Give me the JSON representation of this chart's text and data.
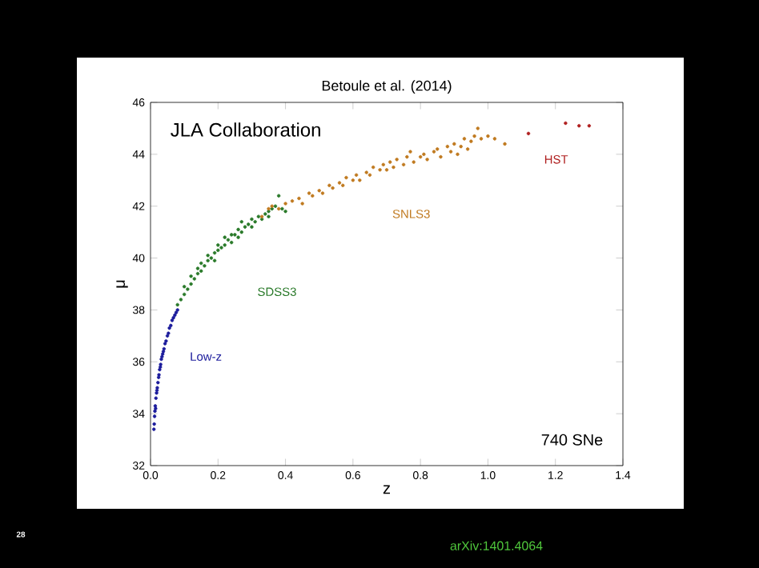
{
  "chart_data": {
    "type": "scatter",
    "title": "Betoule et al. (2014)",
    "xlabel": "z",
    "ylabel": "μ",
    "xlim": [
      0,
      1.4
    ],
    "ylim": [
      32,
      46
    ],
    "xticks": [
      {
        "value": 0,
        "label": "0.0"
      },
      {
        "value": 0.2,
        "label": "0.2"
      },
      {
        "value": 0.4,
        "label": "0.4"
      },
      {
        "value": 0.6,
        "label": "0.6"
      },
      {
        "value": 0.8,
        "label": "0.8"
      },
      {
        "value": 1.0,
        "label": "1.0"
      },
      {
        "value": 1.2,
        "label": "1.2"
      },
      {
        "value": 1.4,
        "label": "1.4"
      }
    ],
    "yticks": [
      32,
      34,
      36,
      38,
      40,
      42,
      44,
      46
    ],
    "grid": false,
    "legend": false,
    "marker": "circle",
    "annotations": [
      "JLA Collaboration",
      "740 SNe",
      "arXiv:1401.4064",
      "28"
    ],
    "series": [
      {
        "name": "Low-z",
        "color": "#1c1c9c",
        "x": [
          0.01,
          0.011,
          0.012,
          0.013,
          0.014,
          0.015,
          0.016,
          0.018,
          0.019,
          0.02,
          0.022,
          0.024,
          0.025,
          0.027,
          0.029,
          0.03,
          0.032,
          0.034,
          0.036,
          0.038,
          0.04,
          0.043,
          0.046,
          0.05,
          0.053,
          0.056,
          0.06,
          0.064,
          0.068,
          0.072,
          0.076,
          0.08
        ],
        "values": [
          33.4,
          33.6,
          33.9,
          34.1,
          34.3,
          34.2,
          34.6,
          34.8,
          34.9,
          35.0,
          35.2,
          35.4,
          35.5,
          35.7,
          35.8,
          35.9,
          36.1,
          36.2,
          36.3,
          36.4,
          36.5,
          36.7,
          36.8,
          37.0,
          37.1,
          37.3,
          37.4,
          37.6,
          37.7,
          37.8,
          37.9,
          38.0
        ]
      },
      {
        "name": "SDSS3",
        "color": "#2a7a2a",
        "x": [
          0.08,
          0.09,
          0.1,
          0.1,
          0.11,
          0.12,
          0.12,
          0.13,
          0.14,
          0.14,
          0.15,
          0.15,
          0.16,
          0.17,
          0.17,
          0.18,
          0.19,
          0.19,
          0.2,
          0.2,
          0.21,
          0.22,
          0.22,
          0.23,
          0.24,
          0.24,
          0.25,
          0.26,
          0.26,
          0.27,
          0.27,
          0.28,
          0.29,
          0.3,
          0.3,
          0.31,
          0.32,
          0.33,
          0.34,
          0.35,
          0.35,
          0.36,
          0.37,
          0.38,
          0.39,
          0.4
        ],
        "values": [
          38.2,
          38.4,
          38.6,
          38.9,
          38.8,
          39.0,
          39.3,
          39.2,
          39.4,
          39.6,
          39.5,
          39.8,
          39.7,
          39.9,
          40.1,
          40.0,
          40.2,
          39.9,
          40.3,
          40.5,
          40.4,
          40.5,
          40.8,
          40.7,
          40.9,
          40.6,
          40.9,
          41.1,
          40.8,
          41.0,
          41.4,
          41.2,
          41.3,
          41.2,
          41.5,
          41.4,
          41.6,
          41.5,
          41.7,
          41.8,
          41.6,
          41.9,
          42.0,
          42.4,
          41.9,
          41.8
        ]
      },
      {
        "name": "SNLS3",
        "color": "#c07a20",
        "x": [
          0.33,
          0.35,
          0.36,
          0.38,
          0.4,
          0.42,
          0.44,
          0.45,
          0.47,
          0.48,
          0.5,
          0.51,
          0.53,
          0.54,
          0.56,
          0.57,
          0.58,
          0.6,
          0.61,
          0.62,
          0.64,
          0.65,
          0.66,
          0.68,
          0.69,
          0.7,
          0.71,
          0.72,
          0.73,
          0.75,
          0.76,
          0.77,
          0.78,
          0.8,
          0.81,
          0.82,
          0.84,
          0.85,
          0.86,
          0.88,
          0.89,
          0.9,
          0.91,
          0.92,
          0.93,
          0.94,
          0.95,
          0.96,
          0.97,
          0.98,
          1.0,
          1.02,
          1.05
        ],
        "values": [
          41.6,
          41.9,
          42.0,
          41.9,
          42.1,
          42.2,
          42.3,
          42.1,
          42.5,
          42.4,
          42.6,
          42.5,
          42.8,
          42.7,
          42.9,
          42.8,
          43.1,
          43.0,
          43.2,
          43.0,
          43.3,
          43.2,
          43.5,
          43.4,
          43.6,
          43.4,
          43.7,
          43.5,
          43.8,
          43.6,
          43.9,
          44.1,
          43.7,
          43.9,
          44.0,
          43.8,
          44.1,
          44.2,
          43.9,
          44.3,
          44.1,
          44.4,
          44.0,
          44.3,
          44.6,
          44.2,
          44.5,
          44.7,
          45.0,
          44.6,
          44.7,
          44.6,
          44.4
        ]
      },
      {
        "name": "HST",
        "color": "#b02020",
        "x": [
          1.12,
          1.23,
          1.27,
          1.3
        ],
        "values": [
          44.8,
          45.2,
          45.1,
          45.1
        ]
      }
    ]
  }
}
